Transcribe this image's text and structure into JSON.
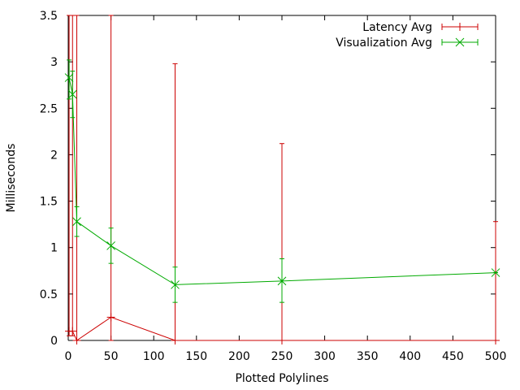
{
  "chart_data": {
    "type": "line",
    "title": "",
    "xlabel": "Plotted Polylines",
    "ylabel": "Milliseconds",
    "xlim": [
      0,
      500
    ],
    "ylim": [
      0,
      3.5
    ],
    "x_ticks": [
      0,
      50,
      100,
      150,
      200,
      250,
      300,
      350,
      400,
      450,
      500
    ],
    "y_ticks": [
      0,
      0.5,
      1,
      1.5,
      2,
      2.5,
      3,
      3.5
    ],
    "x_tick_labels": [
      "0",
      "50",
      "100",
      "150",
      "200",
      "250",
      "300",
      "350",
      "400",
      "450",
      "500"
    ],
    "y_tick_labels": [
      "0",
      "0.5",
      "1",
      "1.5",
      "2",
      "2.5",
      "3",
      "3.5"
    ],
    "grid": false,
    "legend_position": "top-right",
    "series": [
      {
        "name": "Latency Avg",
        "color": "#cc0000",
        "marker": "plus",
        "points": [
          {
            "x": 1,
            "y": 0.1,
            "ylow": 0.05,
            "yhigh": 3.5
          },
          {
            "x": 5,
            "y": 0.1,
            "ylow": 0.05,
            "yhigh": 3.5
          },
          {
            "x": 10,
            "y": 0.0,
            "ylow": 0.0,
            "yhigh": 3.5
          },
          {
            "x": 50,
            "y": 0.25,
            "ylow": 0.0,
            "yhigh": 3.5
          },
          {
            "x": 125,
            "y": 0.0,
            "ylow": 0.0,
            "yhigh": 2.98
          },
          {
            "x": 250,
            "y": 0.0,
            "ylow": 0.0,
            "yhigh": 2.12
          },
          {
            "x": 500,
            "y": 0.0,
            "ylow": 0.0,
            "yhigh": 1.28
          }
        ]
      },
      {
        "name": "Visualization Avg",
        "color": "#00aa00",
        "marker": "cross",
        "points": [
          {
            "x": 1,
            "y": 2.83,
            "ylow": 2.6,
            "yhigh": 3.02
          },
          {
            "x": 5,
            "y": 2.65,
            "ylow": 2.4,
            "yhigh": 2.9
          },
          {
            "x": 10,
            "y": 1.28,
            "ylow": 1.12,
            "yhigh": 1.44
          },
          {
            "x": 50,
            "y": 1.02,
            "ylow": 0.83,
            "yhigh": 1.21
          },
          {
            "x": 125,
            "y": 0.6,
            "ylow": 0.41,
            "yhigh": 0.79
          },
          {
            "x": 250,
            "y": 0.64,
            "ylow": 0.41,
            "yhigh": 0.88
          },
          {
            "x": 500,
            "y": 0.73,
            "ylow": 0.73,
            "yhigh": 0.73
          }
        ]
      }
    ]
  }
}
